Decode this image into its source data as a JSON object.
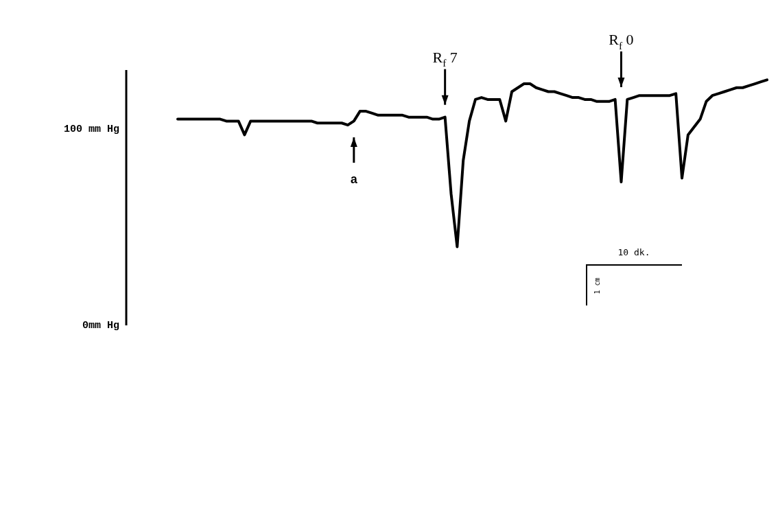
{
  "chart_data": {
    "type": "line",
    "categories": [
      null,
      null,
      null,
      null,
      null,
      null,
      null,
      null,
      null,
      null,
      null,
      null,
      null,
      null,
      null,
      null,
      null,
      null,
      null,
      null,
      null,
      null,
      null,
      null,
      null,
      null,
      null,
      null,
      null,
      null,
      null,
      null,
      null,
      null,
      null,
      null,
      null,
      null,
      null,
      null,
      null,
      null,
      null,
      null,
      null,
      null,
      null,
      null,
      null,
      null,
      null,
      null,
      null,
      null,
      null,
      null,
      null,
      null,
      null,
      null,
      null,
      null,
      null,
      null,
      null,
      null,
      null,
      null,
      null,
      null,
      null,
      null,
      null,
      null,
      null,
      null,
      null,
      null,
      null,
      null,
      null,
      null,
      null,
      null,
      null,
      null,
      null,
      null,
      null,
      null,
      null,
      null,
      null,
      null,
      null,
      null,
      null,
      null
    ],
    "ylim": [
      0,
      130
    ],
    "yticks": [
      {
        "value": 0,
        "label": "0mm Hg"
      },
      {
        "value": 100,
        "label": "100 mm Hg"
      }
    ],
    "tick_labels": "y",
    "grid": false,
    "legend": false,
    "marker": "none",
    "series": [
      {
        "color": "#000000",
        "values": [
          105,
          105,
          105,
          105,
          105,
          105,
          105,
          105,
          104,
          104,
          104,
          97,
          104,
          104,
          104,
          104,
          104,
          104,
          104,
          104,
          104,
          104,
          104,
          103,
          103,
          103,
          103,
          103,
          102,
          104,
          109,
          109,
          108,
          107,
          107,
          107,
          107,
          107,
          106,
          106,
          106,
          106,
          105,
          105,
          106,
          67,
          40,
          84,
          104,
          115,
          116,
          115,
          115,
          115,
          104,
          119,
          121,
          123,
          123,
          121,
          120,
          119,
          119,
          118,
          117,
          116,
          116,
          115,
          115,
          114,
          114,
          114,
          115,
          73,
          115,
          116,
          117,
          117,
          117,
          117,
          117,
          117,
          118,
          75,
          97,
          101,
          105,
          114,
          117,
          118,
          119,
          120,
          121,
          121,
          122,
          123,
          124,
          125
        ]
      }
    ],
    "annotations": [
      "a",
      "R$_{f}$ 7",
      "R$_{f}$ 0",
      "10 dk.",
      "1 cm"
    ]
  }
}
